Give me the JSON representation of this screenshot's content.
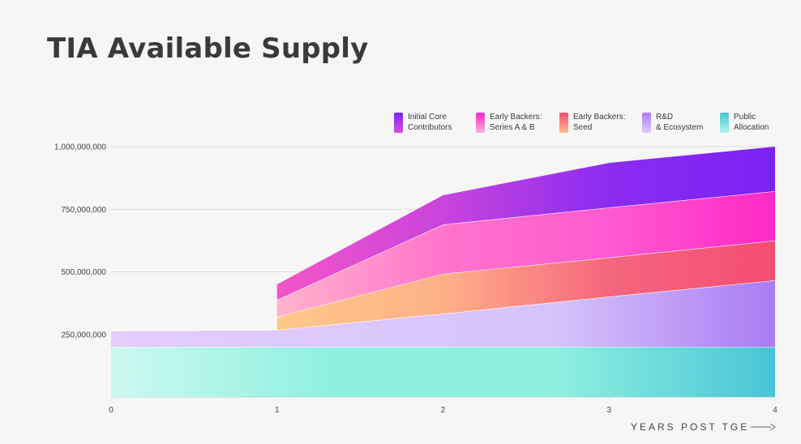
{
  "title": "TIA Available Supply",
  "chart_data": {
    "type": "area",
    "stacked": true,
    "title": "TIA Available Supply",
    "xlabel": "YEARS POST TGE",
    "ylabel": "",
    "x": [
      0,
      1,
      2,
      3,
      4
    ],
    "xticks": [
      "0",
      "1",
      "2",
      "3",
      "4"
    ],
    "yticks": [
      "250,000,000",
      "500,000,000",
      "750,000,000",
      "1,000,000,000"
    ],
    "ytick_values": [
      250000000,
      500000000,
      750000000,
      1000000000
    ],
    "ylim": [
      0,
      1000000000
    ],
    "xlim": [
      0,
      4
    ],
    "grid": true,
    "legend_position": "top-right",
    "series": [
      {
        "name": "Public Allocation",
        "label": "Public\nAllocation",
        "values": [
          200000000,
          200000000,
          200000000,
          200000000,
          200000000
        ],
        "start_x": 0,
        "colors": [
          "#cdf8f0",
          "#8ff0e0",
          "#8ff0e0",
          "#48c4d6"
        ]
      },
      {
        "name": "R&D & Ecosystem",
        "label": "R&D\n& Ecosystem",
        "values": [
          65000000,
          68000000,
          133000000,
          201000000,
          266000000
        ],
        "start_x": 0,
        "colors": [
          "#e2cdfb",
          "#ddc8fb",
          "#d7c3fa",
          "#a97bf3"
        ]
      },
      {
        "name": "Early Backers: Seed",
        "label": "Early Backers:\nSeed",
        "values": [
          0,
          52000000,
          159000000,
          156000000,
          159000000
        ],
        "start_x": 1,
        "colors": [
          "#ffc888",
          "#fdb088",
          "#f4667e",
          "#f44d72"
        ]
      },
      {
        "name": "Early Backers: Series A & B",
        "label": "Early Backers:\nSeries A & B",
        "values": [
          0,
          68000000,
          197000000,
          200000000,
          197000000
        ],
        "start_x": 1,
        "colors": [
          "#ffb4cc",
          "#ff74cc",
          "#ff5ad0",
          "#ff28c6"
        ]
      },
      {
        "name": "Initial Core Contributors",
        "label": "Initial Core\nContributors",
        "values": [
          0,
          62000000,
          117000000,
          178000000,
          178000000
        ],
        "start_x": 1,
        "colors": [
          "#f455c8",
          "#c844dc",
          "#8a2cf0",
          "#7b22f4"
        ]
      }
    ]
  }
}
